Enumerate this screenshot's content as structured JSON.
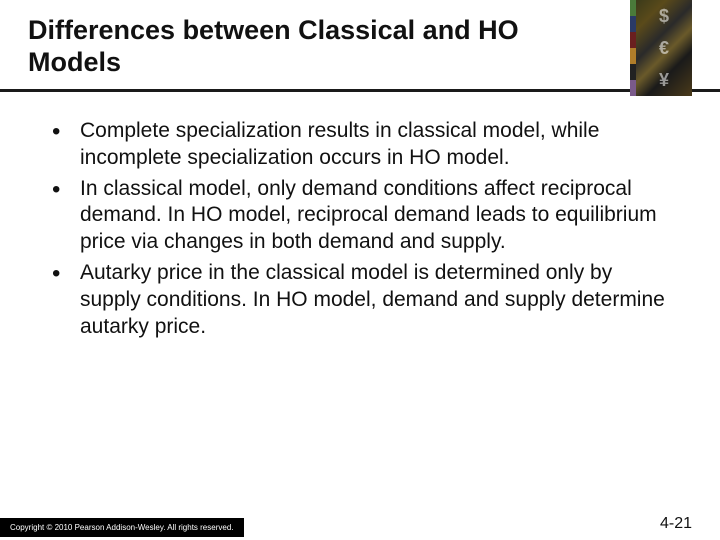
{
  "title": "Differences between Classical and HO Models",
  "bullets": [
    "Complete specialization results in classical model, while incomplete specialization occurs in HO model.",
    "In classical model, only demand conditions affect reciprocal demand. In HO model, reciprocal demand leads to equilibrium price via changes in both demand and supply.",
    "Autarky price in the classical model is determined only by supply conditions. In HO model, demand and supply determine autarky price."
  ],
  "footer": {
    "copyright": "Copyright © 2010 Pearson Addison-Wesley. All rights reserved.",
    "page": "4-21"
  },
  "logo_symbols": [
    "$",
    "€",
    "¥"
  ],
  "colors": {
    "text": "#111111",
    "rule": "#1a1a1a",
    "footer_bg": "#000000",
    "footer_text": "#ffffff"
  }
}
